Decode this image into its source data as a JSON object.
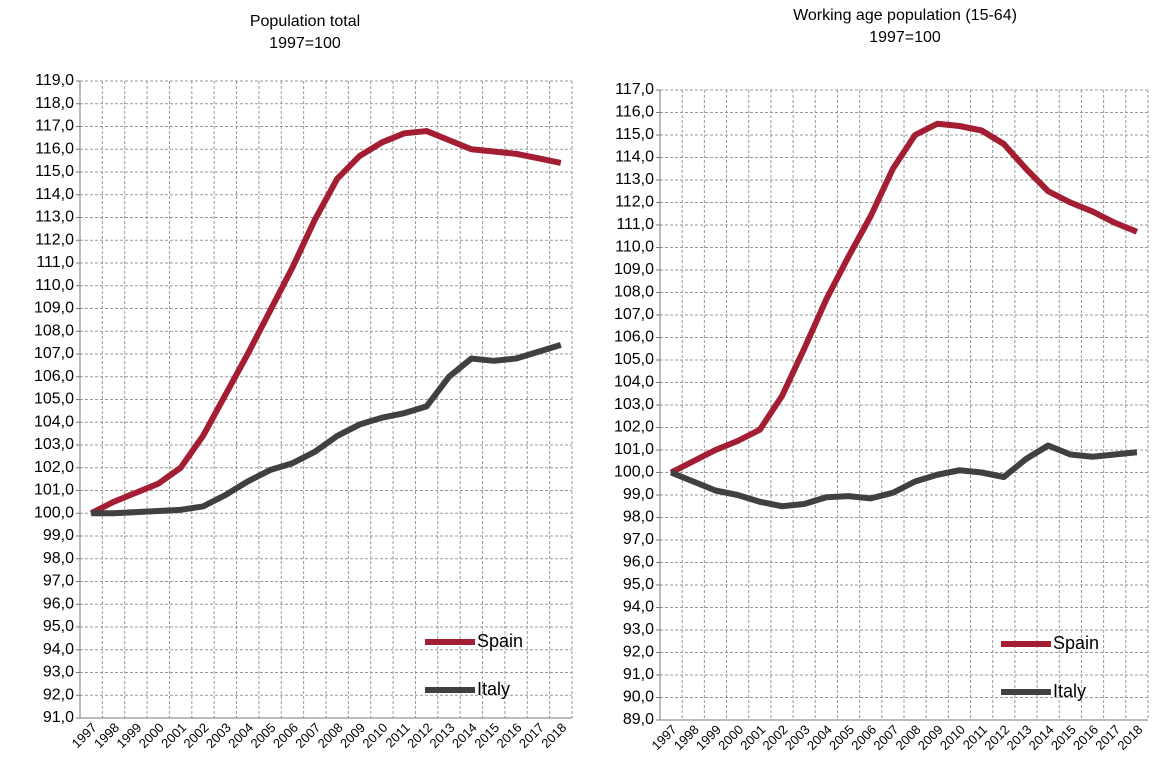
{
  "chart_data": [
    {
      "type": "line",
      "title": "Population total",
      "subtitle": "1997=100",
      "categories": [
        "1997",
        "1998",
        "1999",
        "2000",
        "2001",
        "2002",
        "2003",
        "2004",
        "2005",
        "2006",
        "2007",
        "2008",
        "2009",
        "2010",
        "2011",
        "2012",
        "2013",
        "2014",
        "2015",
        "2016",
        "2017",
        "2018"
      ],
      "series": [
        {
          "name": "Spain",
          "color": "#a31e32",
          "values": [
            100,
            100.5,
            100.9,
            101.3,
            102.0,
            103.4,
            105.2,
            107.0,
            108.9,
            110.8,
            112.9,
            114.7,
            115.7,
            116.3,
            116.7,
            116.8,
            116.4,
            116.0,
            115.9,
            115.8,
            115.6,
            115.4
          ]
        },
        {
          "name": "Italy",
          "color": "#404040",
          "values": [
            100,
            100.0,
            100.05,
            100.1,
            100.15,
            100.3,
            100.8,
            101.4,
            101.9,
            102.2,
            102.7,
            103.4,
            103.9,
            104.2,
            104.4,
            104.7,
            106.0,
            106.8,
            106.7,
            106.8,
            107.1,
            107.4
          ]
        }
      ],
      "ylim": [
        91,
        119
      ],
      "yticks": [
        {
          "value": 91,
          "label": "91,0"
        },
        {
          "value": 92,
          "label": "92,0"
        },
        {
          "value": 93,
          "label": "93,0"
        },
        {
          "value": 94,
          "label": "94,0"
        },
        {
          "value": 95,
          "label": "95,0"
        },
        {
          "value": 96,
          "label": "96,0"
        },
        {
          "value": 97,
          "label": "97,0"
        },
        {
          "value": 98,
          "label": "98,0"
        },
        {
          "value": 99,
          "label": "99,0"
        },
        {
          "value": 100,
          "label": "100,0"
        },
        {
          "value": 101,
          "label": "101,0"
        },
        {
          "value": 102,
          "label": "102,0"
        },
        {
          "value": 103,
          "label": "103,0"
        },
        {
          "value": 104,
          "label": "104,0"
        },
        {
          "value": 105,
          "label": "105,0"
        },
        {
          "value": 106,
          "label": "106,0"
        },
        {
          "value": 107,
          "label": "107,0"
        },
        {
          "value": 108,
          "label": "108,0"
        },
        {
          "value": 109,
          "label": "109,0"
        },
        {
          "value": 110,
          "label": "110,0"
        },
        {
          "value": 111,
          "label": "111,0"
        },
        {
          "value": 112,
          "label": "112,0"
        },
        {
          "value": 113,
          "label": "113,0"
        },
        {
          "value": 114,
          "label": "114,0"
        },
        {
          "value": 115,
          "label": "115,0"
        },
        {
          "value": 116,
          "label": "116,0"
        },
        {
          "value": 117,
          "label": "117,0"
        },
        {
          "value": 118,
          "label": "118,0"
        },
        {
          "value": 119,
          "label": "119,0"
        }
      ],
      "grid": true,
      "legend": "lower right"
    },
    {
      "type": "line",
      "title": "Working age population (15-64)",
      "subtitle": "1997=100",
      "categories": [
        "1997",
        "1998",
        "1999",
        "2000",
        "2001",
        "2002",
        "2003",
        "2004",
        "2005",
        "2006",
        "2007",
        "2008",
        "2009",
        "2010",
        "2011",
        "2012",
        "2013",
        "2014",
        "2015",
        "2016",
        "2017",
        "2018"
      ],
      "series": [
        {
          "name": "Spain",
          "color": "#a31e32",
          "values": [
            100,
            100.5,
            101.0,
            101.4,
            101.9,
            103.4,
            105.5,
            107.7,
            109.6,
            111.4,
            113.5,
            115.0,
            115.5,
            115.4,
            115.2,
            114.6,
            113.5,
            112.5,
            112.0,
            111.6,
            111.1,
            110.7
          ]
        },
        {
          "name": "Italy",
          "color": "#404040",
          "values": [
            100,
            99.6,
            99.2,
            99.0,
            98.7,
            98.5,
            98.6,
            98.9,
            98.95,
            98.85,
            99.1,
            99.6,
            99.9,
            100.1,
            100.0,
            99.8,
            100.6,
            101.2,
            100.8,
            100.7,
            100.8,
            100.9
          ]
        }
      ],
      "ylim": [
        89,
        117
      ],
      "yticks": [
        {
          "value": 89,
          "label": "89,0"
        },
        {
          "value": 90,
          "label": "90,0"
        },
        {
          "value": 91,
          "label": "91,0"
        },
        {
          "value": 92,
          "label": "92,0"
        },
        {
          "value": 93,
          "label": "93,0"
        },
        {
          "value": 94,
          "label": "94,0"
        },
        {
          "value": 95,
          "label": "95,0"
        },
        {
          "value": 96,
          "label": "96,0"
        },
        {
          "value": 97,
          "label": "97,0"
        },
        {
          "value": 98,
          "label": "98,0"
        },
        {
          "value": 99,
          "label": "99,0"
        },
        {
          "value": 100,
          "label": "100,0"
        },
        {
          "value": 101,
          "label": "101,0"
        },
        {
          "value": 102,
          "label": "102,0"
        },
        {
          "value": 103,
          "label": "103,0"
        },
        {
          "value": 104,
          "label": "104,0"
        },
        {
          "value": 105,
          "label": "105,0"
        },
        {
          "value": 106,
          "label": "106,0"
        },
        {
          "value": 107,
          "label": "107,0"
        },
        {
          "value": 108,
          "label": "108,0"
        },
        {
          "value": 109,
          "label": "109,0"
        },
        {
          "value": 110,
          "label": "110,0"
        },
        {
          "value": 111,
          "label": "111,0"
        },
        {
          "value": 112,
          "label": "112,0"
        },
        {
          "value": 113,
          "label": "113,0"
        },
        {
          "value": 114,
          "label": "114,0"
        },
        {
          "value": 115,
          "label": "115,0"
        },
        {
          "value": 116,
          "label": "116,0"
        },
        {
          "value": 117,
          "label": "117,0"
        }
      ],
      "grid": true,
      "legend": "lower right"
    }
  ]
}
